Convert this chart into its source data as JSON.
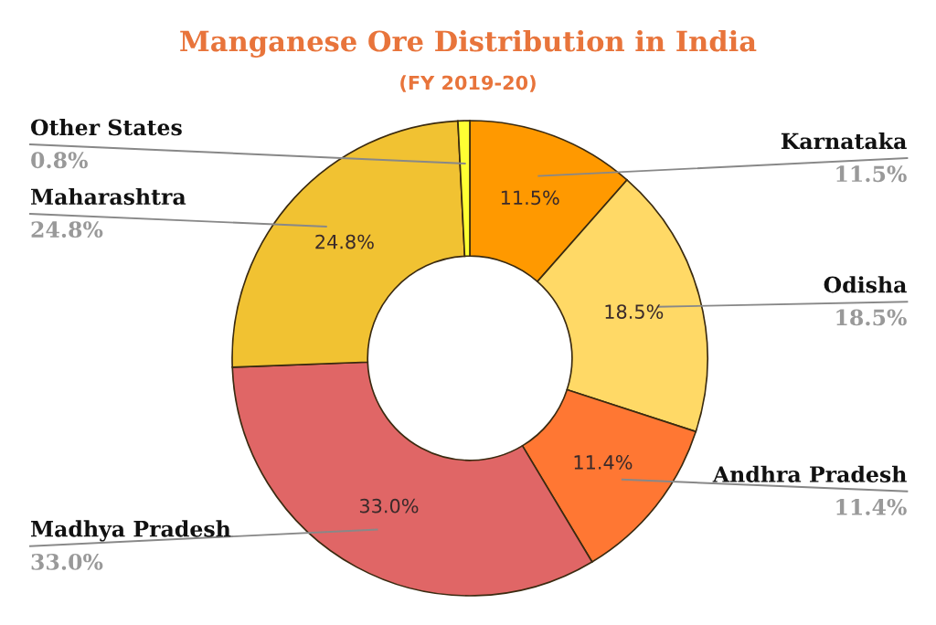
{
  "chart_data": {
    "type": "donut",
    "title": "Manganese Ore Distribution in India",
    "subtitle": "(FY 2019-20)",
    "categories": [
      "Karnataka",
      "Odisha",
      "Andhra Pradesh",
      "Madhya Pradesh",
      "Maharashtra",
      "Other States"
    ],
    "values": [
      11.5,
      18.5,
      11.4,
      33.0,
      24.8,
      0.8
    ],
    "colors": [
      "#ff9900",
      "#ffd966",
      "#ff7733",
      "#e06666",
      "#f1c232",
      "#ffff33"
    ],
    "value_labels": [
      "11.5%",
      "18.5%",
      "11.4%",
      "33.0%",
      "24.8%",
      "0.8%"
    ],
    "legend": false
  }
}
